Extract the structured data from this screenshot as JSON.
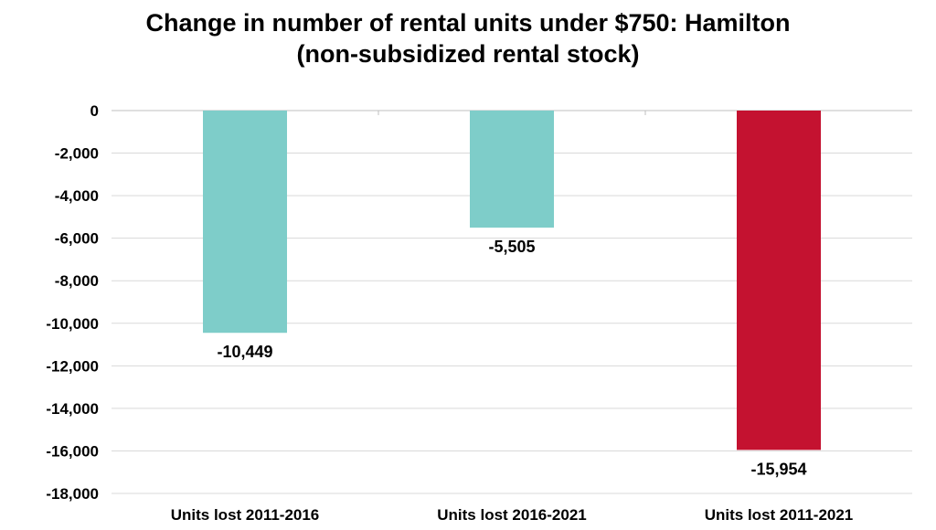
{
  "chart_data": {
    "type": "bar",
    "title_lines": [
      "Change in number of rental units under $750:  Hamilton",
      "(non-subsidized rental stock)"
    ],
    "categories": [
      "Units lost 2011-2016",
      "Units lost 2016-2021",
      "Units lost 2011-2021"
    ],
    "values": [
      -10449,
      -5505,
      -15954
    ],
    "data_labels": [
      "-10,449",
      "-5,505",
      "-15,954"
    ],
    "bar_colors": [
      "#7ECDC9",
      "#7ECDC9",
      "#C41230"
    ],
    "ylim": [
      -18000,
      0
    ],
    "yticks": [
      0,
      -2000,
      -4000,
      -6000,
      -8000,
      -10000,
      -12000,
      -14000,
      -16000,
      -18000
    ],
    "ytick_labels": [
      "0",
      "-2,000",
      "-4,000",
      "-6,000",
      "-8,000",
      "-10,000",
      "-12,000",
      "-14,000",
      "-16,000",
      "-18,000"
    ],
    "grid": true,
    "legend": "none"
  }
}
